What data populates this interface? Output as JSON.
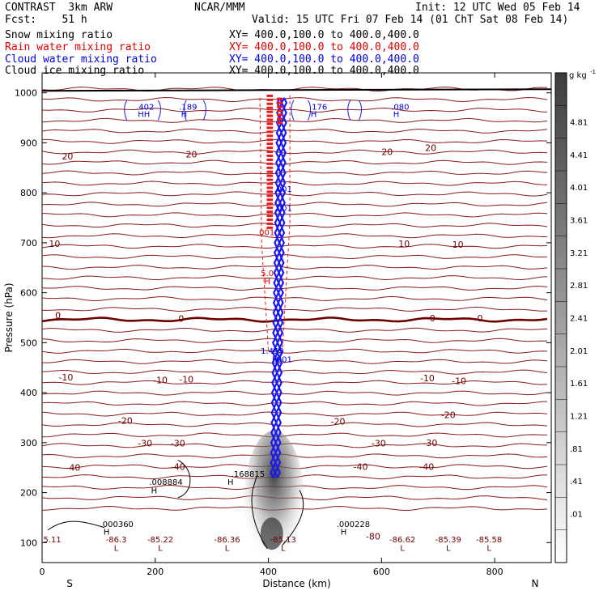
{
  "header": {
    "title": "CONTRAST  3km ARW",
    "center": "NCAR/MMM",
    "init": "Init: 12 UTC Wed 05 Feb 14",
    "fcst": "Fcst:    51 h",
    "valid": "Valid: 15 UTC Fri 07 Feb 14 (01 ChT Sat 08 Feb 14)"
  },
  "fields": [
    {
      "name": "Snow mixing ratio",
      "color": "#000000",
      "xy": "XY= 400.0,100.0 to 400.0,400.0"
    },
    {
      "name": "Rain water mixing ratio",
      "color": "#dd0000",
      "xy": "XY= 400.0,100.0 to 400.0,400.0"
    },
    {
      "name": "Cloud water mixing ratio",
      "color": "#0000dd",
      "xy": "XY= 400.0,100.0 to 400.0,400.0"
    },
    {
      "name": "Cloud ice mixing ratio",
      "color": "#000000",
      "xy": "XY= 400.0,100.0 to 400.0,400.0"
    }
  ],
  "colorbar": {
    "unit_base": "g kg",
    "unit_exp": "-1",
    "labels": [
      "4.81",
      "4.41",
      "4.01",
      "3.61",
      "3.21",
      "2.81",
      "2.41",
      "2.01",
      "1.61",
      "1.21",
      ".81",
      ".41",
      ".01"
    ]
  },
  "chart_data": {
    "type": "cross-section",
    "xlabel": "Distance (km)",
    "ylabel": "Pressure (hPa)",
    "xlim": [
      0,
      900
    ],
    "ylim": [
      1040,
      60
    ],
    "x_ticks": [
      0,
      200,
      400,
      600,
      800
    ],
    "x_tick_labels": [
      "0",
      "200",
      "400",
      "600",
      "800"
    ],
    "y_ticks": [
      100,
      200,
      300,
      400,
      500,
      600,
      700,
      800,
      900,
      1000
    ],
    "y_tick_labels": [
      "100",
      "200",
      "300",
      "400",
      "500",
      "600",
      "700",
      "800",
      "900",
      "1000"
    ],
    "orientation": {
      "left": "S",
      "right": "N"
    },
    "temperature_levels": [
      {
        "label": "-40",
        "p": 250
      },
      {
        "label": "-30",
        "p": 300
      },
      {
        "label": "-20",
        "p": 350
      },
      {
        "label": "-10",
        "p": 420
      },
      {
        "label": "0",
        "p": 553
      },
      {
        "label": "10",
        "p": 698
      },
      {
        "label": "20",
        "p": 888
      }
    ],
    "temperature_labels": [
      {
        "text": "-40",
        "x": 55,
        "p": 250
      },
      {
        "text": "-40",
        "x": 240,
        "p": 252
      },
      {
        "text": "-40",
        "x": 563,
        "p": 252
      },
      {
        "text": "-40",
        "x": 680,
        "p": 252
      },
      {
        "text": "-30",
        "x": 182,
        "p": 299
      },
      {
        "text": "-30",
        "x": 240,
        "p": 299
      },
      {
        "text": "-30",
        "x": 595,
        "p": 299
      },
      {
        "text": "-30",
        "x": 686,
        "p": 300
      },
      {
        "text": "-20",
        "x": 147,
        "p": 344
      },
      {
        "text": "-20",
        "x": 523,
        "p": 343
      },
      {
        "text": "-20",
        "x": 718,
        "p": 356
      },
      {
        "text": "-10",
        "x": 42,
        "p": 431
      },
      {
        "text": "-10",
        "x": 209,
        "p": 425
      },
      {
        "text": "-10",
        "x": 255,
        "p": 427
      },
      {
        "text": "-10",
        "x": 681,
        "p": 429
      },
      {
        "text": "-10",
        "x": 737,
        "p": 424
      },
      {
        "text": "0",
        "x": 28,
        "p": 555
      },
      {
        "text": "0",
        "x": 246,
        "p": 548
      },
      {
        "text": "0",
        "x": 690,
        "p": 549
      },
      {
        "text": "0",
        "x": 774,
        "p": 549
      },
      {
        "text": "10",
        "x": 22,
        "p": 698
      },
      {
        "text": "10",
        "x": 640,
        "p": 698
      },
      {
        "text": "10",
        "x": 735,
        "p": 697
      },
      {
        "text": "20",
        "x": 45,
        "p": 873
      },
      {
        "text": "20",
        "x": 264,
        "p": 877
      },
      {
        "text": "20",
        "x": 610,
        "p": 882
      },
      {
        "text": "20",
        "x": 687,
        "p": 890
      },
      {
        "text": "-80",
        "x": 585,
        "p": 113
      }
    ],
    "extrema": [
      {
        "text": "L",
        "x": 131,
        "p": 90,
        "color": "#6e0000"
      },
      {
        "text": "-86.3",
        "x": 131,
        "p": 107,
        "color": "#6e0000"
      },
      {
        "text": "L",
        "x": 209,
        "p": 90,
        "color": "#6e0000"
      },
      {
        "text": "-85.22",
        "x": 209,
        "p": 107,
        "color": "#6e0000"
      },
      {
        "text": "L",
        "x": 327,
        "p": 90,
        "color": "#6e0000"
      },
      {
        "text": "-86.36",
        "x": 327,
        "p": 107,
        "color": "#6e0000"
      },
      {
        "text": "L",
        "x": 426,
        "p": 90,
        "color": "#6e0000"
      },
      {
        "text": "-85.13",
        "x": 426,
        "p": 107,
        "color": "#6e0000"
      },
      {
        "text": "L",
        "x": 637,
        "p": 90,
        "color": "#6e0000"
      },
      {
        "text": "-86.62",
        "x": 637,
        "p": 107,
        "color": "#6e0000"
      },
      {
        "text": "L",
        "x": 718,
        "p": 90,
        "color": "#6e0000"
      },
      {
        "text": "-85.39",
        "x": 718,
        "p": 107,
        "color": "#6e0000"
      },
      {
        "text": "L",
        "x": 790,
        "p": 90,
        "color": "#6e0000"
      },
      {
        "text": "-85.58",
        "x": 790,
        "p": 107,
        "color": "#6e0000"
      },
      {
        "text": "5.11",
        "x": 18,
        "p": 107,
        "color": "#6e0000"
      },
      {
        "text": "H",
        "x": 114,
        "p": 122,
        "color": "#000000"
      },
      {
        "text": ".000360",
        "x": 132,
        "p": 138,
        "color": "#000000"
      },
      {
        "text": "H",
        "x": 533,
        "p": 122,
        "color": "#000000"
      },
      {
        "text": ".000228",
        "x": 550,
        "p": 138,
        "color": "#000000"
      },
      {
        "text": "H",
        "x": 198,
        "p": 205,
        "color": "#000000"
      },
      {
        "text": ".008884",
        "x": 219,
        "p": 222,
        "color": "#000000"
      },
      {
        "text": "H",
        "x": 333,
        "p": 222,
        "color": "#000000"
      },
      {
        "text": ".168815",
        "x": 364,
        "p": 238,
        "color": "#000000"
      },
      {
        "text": "H",
        "x": 412,
        "p": 467,
        "color": "#0000dd"
      },
      {
        "text": ".001",
        "x": 426,
        "p": 467,
        "color": "#0000dd"
      },
      {
        "text": "1.459",
        "x": 407,
        "p": 484,
        "color": "#0000dd"
      },
      {
        "text": "H",
        "x": 398,
        "p": 624,
        "color": "#dd0000"
      },
      {
        "text": "5.0",
        "x": 398,
        "p": 640,
        "color": "#dd0000"
      },
      {
        "text": ".001",
        "x": 395,
        "p": 722,
        "color": "#dd0000"
      },
      {
        "text": ".001",
        "x": 426,
        "p": 770,
        "color": "#0000dd"
      },
      {
        "text": ".001",
        "x": 426,
        "p": 808,
        "color": "#0000dd"
      },
      {
        "text": "HH",
        "x": 180,
        "p": 958,
        "color": "#0000dd"
      },
      {
        "text": ".402",
        "x": 182,
        "p": 973,
        "color": "#0000dd"
      },
      {
        "text": "H",
        "x": 251,
        "p": 958,
        "color": "#0000dd"
      },
      {
        "text": ".189",
        "x": 258,
        "p": 973,
        "color": "#0000dd"
      },
      {
        "text": "H",
        "x": 480,
        "p": 958,
        "color": "#0000dd"
      },
      {
        "text": ".176",
        "x": 488,
        "p": 973,
        "color": "#0000dd"
      },
      {
        "text": "H",
        "x": 626,
        "p": 958,
        "color": "#0000dd"
      },
      {
        "text": ".080",
        "x": 633,
        "p": 973,
        "color": "#0000dd"
      }
    ]
  }
}
